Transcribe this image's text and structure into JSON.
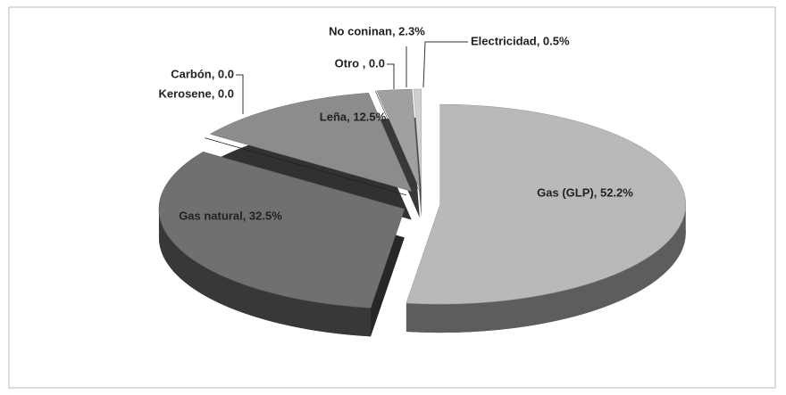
{
  "chart_data": {
    "type": "pie3d",
    "values": [
      52.2,
      32.5,
      0.0,
      0.0,
      12.5,
      0.0,
      2.3,
      0.5
    ],
    "value_labels": [
      "Gas (GLP), 52.2%",
      "Gas natural, 32.5%",
      "Kerosene, 0.0",
      "Carbón, 0.0",
      "Leña, 12.5%",
      "Otro , 0.0",
      "No coninan, 2.3%",
      "Electricidad, 0.5%"
    ],
    "colors": [
      "#b9b9b9",
      "#707070",
      "#1a1a1a",
      "#2a2a2a",
      "#8c8c8c",
      "#444444",
      "#a0a0a0",
      "#cfcfcf"
    ]
  }
}
